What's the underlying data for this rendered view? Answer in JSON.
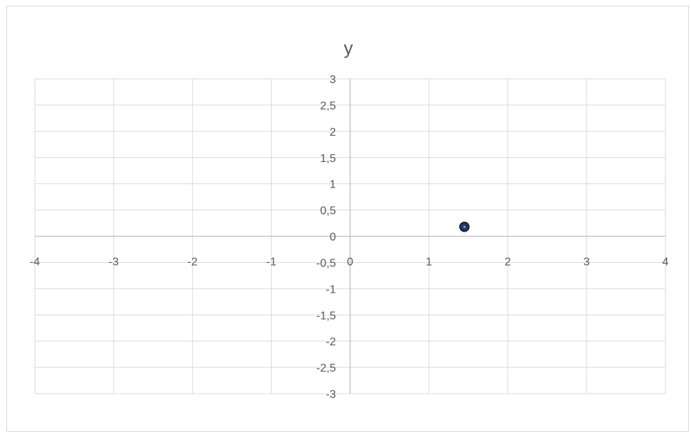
{
  "chart_data": {
    "type": "scatter",
    "title": "y",
    "xlim": [
      -4,
      4
    ],
    "ylim": [
      -3,
      3
    ],
    "x_ticks": [
      "-4",
      "-3",
      "-2",
      "-1",
      "0",
      "1",
      "2",
      "3",
      "4"
    ],
    "y_ticks": [
      "3",
      "2,5",
      "2",
      "1,5",
      "1",
      "0,5",
      "0",
      "-0,5",
      "-1",
      "-1,5",
      "-2",
      "-2,5",
      "-3"
    ],
    "grid": true,
    "points": [
      {
        "x": 1.45,
        "y": 0.18
      }
    ],
    "colors": {
      "marker_fill": "#1f3864",
      "marker_edge": "#0d1b33",
      "grid": "#d9d9d9",
      "axis": "#bfbfbf",
      "text": "#595959"
    }
  }
}
